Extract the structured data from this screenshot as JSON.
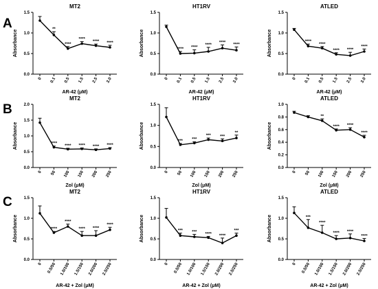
{
  "rows": [
    {
      "letter": "A",
      "xlabel": "AR-42 (μM)"
    },
    {
      "letter": "B",
      "xlabel": "Zol (μM)"
    },
    {
      "letter": "C",
      "xlabel": "AR-42 + Zol (μM)"
    }
  ],
  "chart_data": [
    {
      "type": "line",
      "row": 0,
      "col": 0,
      "title": "MT2",
      "xlabel": "AR-42 (μM)",
      "ylabel": "Absorbance",
      "categories": [
        "0",
        "0.1",
        "0.5",
        "1.5",
        "2.5",
        "3.0"
      ],
      "ylim": [
        0,
        1.5
      ],
      "yticks": [
        "0.0",
        "0.5",
        "1.0",
        "1.5"
      ],
      "values": [
        1.3,
        0.95,
        0.62,
        0.74,
        0.69,
        0.65
      ],
      "errors": [
        0.1,
        0.08,
        0.05,
        0.05,
        0.04,
        0.05
      ],
      "significance": [
        "",
        "**",
        "****",
        "****",
        "****",
        "****"
      ]
    },
    {
      "type": "line",
      "row": 0,
      "col": 1,
      "title": "HT1RV",
      "xlabel": "AR-42 (μM)",
      "ylabel": "Absorbance",
      "categories": [
        "0",
        "0.1",
        "0.5",
        "1.5",
        "2.5",
        "3.0"
      ],
      "ylim": [
        0,
        1.5
      ],
      "yticks": [
        "0.0",
        "0.5",
        "1.0",
        "1.5"
      ],
      "values": [
        1.15,
        0.5,
        0.51,
        0.55,
        0.63,
        0.58
      ],
      "errors": [
        0.04,
        0.05,
        0.08,
        0.1,
        0.08,
        0.08
      ],
      "significance": [
        "",
        "****",
        "****",
        "****",
        "****",
        "****"
      ]
    },
    {
      "type": "line",
      "row": 0,
      "col": 2,
      "title": "ATLED",
      "xlabel": "AR-42 (μM)",
      "ylabel": "Absorbance",
      "categories": [
        "0",
        "0.1",
        "0.5",
        "1.5",
        "2.5",
        "3.0"
      ],
      "ylim": [
        0,
        1.5
      ],
      "yticks": [
        "0.0",
        "0.5",
        "1.0",
        "1.5"
      ],
      "values": [
        1.08,
        0.68,
        0.63,
        0.48,
        0.45,
        0.55
      ],
      "errors": [
        0.03,
        0.05,
        0.04,
        0.04,
        0.08,
        0.06
      ],
      "significance": [
        "",
        "****",
        "****",
        "****",
        "****",
        "****"
      ]
    },
    {
      "type": "line",
      "row": 1,
      "col": 0,
      "title": "MT2",
      "xlabel": "Zol (μM)",
      "ylabel": "Absorbance",
      "categories": [
        "0",
        "50",
        "100",
        "150",
        "200",
        "250"
      ],
      "ylim": [
        0,
        2.0
      ],
      "yticks": [
        "0.0",
        "0.5",
        "1.0",
        "1.5",
        "2.0"
      ],
      "values": [
        1.42,
        0.64,
        0.58,
        0.59,
        0.56,
        0.6
      ],
      "errors": [
        0.14,
        0.04,
        0.03,
        0.03,
        0.03,
        0.03
      ],
      "significance": [
        "",
        "****",
        "****",
        "****",
        "****",
        "****"
      ]
    },
    {
      "type": "line",
      "row": 1,
      "col": 1,
      "title": "HT1RV",
      "xlabel": "Zol (μM)",
      "ylabel": "Absorbance",
      "categories": [
        "0",
        "50",
        "100",
        "150",
        "200",
        "250"
      ],
      "ylim": [
        0,
        1.5
      ],
      "yticks": [
        "0.0",
        "0.5",
        "1.0",
        "1.5"
      ],
      "values": [
        1.2,
        0.54,
        0.58,
        0.66,
        0.63,
        0.7
      ],
      "errors": [
        0.22,
        0.03,
        0.03,
        0.04,
        0.05,
        0.07
      ],
      "significance": [
        "",
        "***",
        "***",
        "***",
        "***",
        "**"
      ]
    },
    {
      "type": "line",
      "row": 1,
      "col": 2,
      "title": "ATLED",
      "xlabel": "Zol (μM)",
      "ylabel": "Absorbance",
      "categories": [
        "0",
        "50",
        "100",
        "150",
        "200",
        "250"
      ],
      "ylim": [
        0,
        1.0
      ],
      "yticks": [
        "0.0",
        "0.2",
        "0.4",
        "0.6",
        "0.8",
        "1.0"
      ],
      "values": [
        0.87,
        0.8,
        0.74,
        0.59,
        0.6,
        0.48
      ],
      "errors": [
        0.02,
        0.02,
        0.03,
        0.02,
        0.03,
        0.03
      ],
      "significance": [
        "",
        "",
        "**",
        "****",
        "****",
        "****"
      ]
    },
    {
      "type": "line",
      "row": 2,
      "col": 0,
      "title": "MT2",
      "xlabel": "AR-42 + Zol (μM)",
      "ylabel": "Absorbance",
      "categories": [
        "0",
        "0.5/50",
        "1.0/100",
        "1.5/150",
        "2.0/200",
        "2.5/250"
      ],
      "ylim": [
        0,
        1.5
      ],
      "yticks": [
        "0.0",
        "0.5",
        "1.0",
        "1.5"
      ],
      "values": [
        1.12,
        0.65,
        0.8,
        0.58,
        0.58,
        0.72
      ],
      "errors": [
        0.18,
        0.03,
        0.06,
        0.1,
        0.12,
        0.06
      ],
      "significance": [
        "",
        "****",
        "****",
        "****",
        "****",
        "****"
      ]
    },
    {
      "type": "line",
      "row": 2,
      "col": 1,
      "title": "HT1RV",
      "xlabel": "AR-42 + Zol (μM)",
      "ylabel": "Absorbance",
      "categories": [
        "0",
        "0.5/50",
        "1.0/100",
        "1.5/150",
        "2.0/200",
        "2.5/250"
      ],
      "ylim": [
        0,
        1.5
      ],
      "yticks": [
        "0.0",
        "0.5",
        "1.0",
        "1.5"
      ],
      "values": [
        1.02,
        0.58,
        0.55,
        0.53,
        0.4,
        0.58
      ],
      "errors": [
        0.22,
        0.06,
        0.06,
        0.03,
        0.12,
        0.06
      ],
      "significance": [
        "",
        "***",
        "***",
        "****",
        "****",
        "***"
      ]
    },
    {
      "type": "line",
      "row": 2,
      "col": 2,
      "title": "ATLED",
      "xlabel": "AR-42 + Zol (μM)",
      "ylabel": "Absorbance",
      "categories": [
        "0",
        "0.5/50",
        "1.0/100",
        "1.5/150",
        "2.0/200",
        "2.5/250"
      ],
      "ylim": [
        0,
        1.5
      ],
      "yticks": [
        "0.0",
        "0.5",
        "1.0",
        "1.5"
      ],
      "values": [
        1.13,
        0.77,
        0.65,
        0.5,
        0.52,
        0.45
      ],
      "errors": [
        0.15,
        0.2,
        0.18,
        0.08,
        0.1,
        0.06
      ],
      "significance": [
        "",
        "***",
        "****",
        "****",
        "****",
        "****"
      ]
    }
  ]
}
